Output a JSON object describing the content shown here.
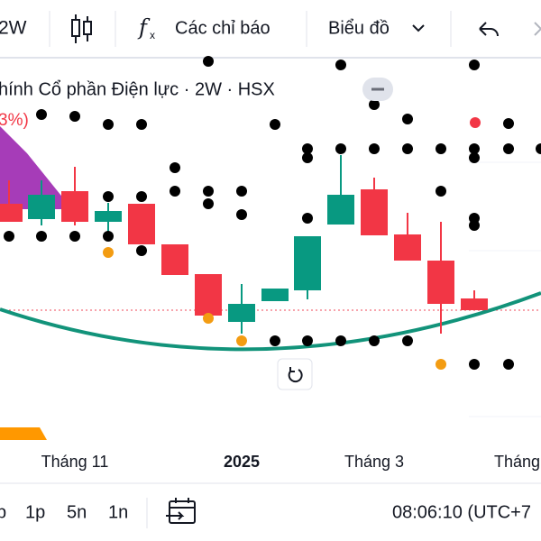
{
  "toolbar": {
    "interval": "2W",
    "indicators": "Các chỉ báo",
    "chart_type": "Biểu đồ"
  },
  "legend": {
    "title": "hính Cổ phần Điện lực · 2W · HSX",
    "change": "3%)"
  },
  "time_axis": [
    "Tháng 11",
    "2025",
    "Tháng 3",
    "Tháng"
  ],
  "bottom_bar": {
    "ranges": [
      "p",
      "1p",
      "5n",
      "1n"
    ],
    "clock": "08:06:10 (UTC+7"
  }
}
